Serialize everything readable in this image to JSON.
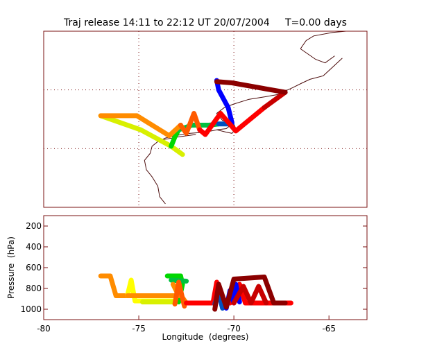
{
  "title": "Traj release 14:11 to 22:12 UT 20/07/2004     T=0.00 days",
  "colors": {
    "frame": "#7a1010",
    "coast": "#4a0a0a",
    "grid": "#7a1010",
    "palette": [
      "#ffff00",
      "#d8f000",
      "#00d800",
      "#00c040",
      "#0050c0",
      "#0000ff",
      "#ff8c00",
      "#ff5a00",
      "#ff0000",
      "#c80000",
      "#8b0000"
    ]
  },
  "chart_data": [
    {
      "type": "line",
      "name": "map",
      "note_grid": true,
      "xlim": [
        -80,
        -63
      ],
      "ylim": [
        35,
        50
      ],
      "gridlines_x": [
        -75,
        -70
      ],
      "gridlines_y": [
        40,
        45
      ],
      "series": [
        {
          "color_index": 1,
          "points": [
            [
              -77,
              42.8
            ],
            [
              -74.9,
              41.6
            ],
            [
              -73.3,
              40.2
            ],
            [
              -72.7,
              39.5
            ]
          ]
        },
        {
          "color_index": 2,
          "points": [
            [
              -73.3,
              40.2
            ],
            [
              -73.1,
              41.0
            ],
            [
              -72.9,
              41.6
            ]
          ]
        },
        {
          "color_index": 3,
          "points": [
            [
              -72.9,
              41.6
            ],
            [
              -72.2,
              42.0
            ],
            [
              -71.3,
              42.0
            ],
            [
              -70.8,
              42.1
            ]
          ]
        },
        {
          "color_index": 4,
          "points": [
            [
              -70.8,
              42.1
            ],
            [
              -70.1,
              42.1
            ]
          ]
        },
        {
          "color_index": 5,
          "points": [
            [
              -70.1,
              42.2
            ],
            [
              -70.3,
              43.5
            ],
            [
              -70.8,
              45.0
            ],
            [
              -70.9,
              45.8
            ]
          ]
        },
        {
          "color_index": 6,
          "points": [
            [
              -77,
              42.8
            ],
            [
              -75.1,
              42.8
            ],
            [
              -73.4,
              41.1
            ],
            [
              -72.8,
              42.0
            ]
          ]
        },
        {
          "color_index": 7,
          "points": [
            [
              -72.8,
              42.0
            ],
            [
              -72.5,
              41.3
            ],
            [
              -72.1,
              43.0
            ],
            [
              -71.8,
              41.6
            ]
          ]
        },
        {
          "color_index": 8,
          "points": [
            [
              -71.8,
              41.6
            ],
            [
              -71.5,
              41.2
            ],
            [
              -70.7,
              43.0
            ],
            [
              -69.9,
              41.5
            ],
            [
              -68.4,
              43.5
            ]
          ]
        },
        {
          "color_index": 9,
          "points": [
            [
              -68.4,
              43.5
            ],
            [
              -67.3,
              44.8
            ]
          ]
        },
        {
          "color_index": 10,
          "points": [
            [
              -67.3,
              44.8
            ],
            [
              -70.1,
              45.6
            ],
            [
              -70.9,
              45.7
            ]
          ]
        }
      ]
    },
    {
      "type": "line",
      "name": "pressure",
      "xlabel": "Longitude  (degrees)",
      "ylabel": "Pressure  (hPa)",
      "xlim": [
        -80,
        -63
      ],
      "ylim": [
        1100,
        100
      ],
      "xticks": [
        -80,
        -75,
        -70,
        -65
      ],
      "xtick_labels": [
        "-80",
        "-75",
        "-70",
        "-65"
      ],
      "yticks": [
        200,
        400,
        600,
        800,
        1000
      ],
      "ytick_labels": [
        "200",
        "400",
        "600",
        "800",
        "1000"
      ],
      "series": [
        {
          "color_index": 6,
          "points": [
            [
              -77,
              680
            ],
            [
              -76.5,
              680
            ],
            [
              -76.2,
              870
            ],
            [
              -75.6,
              870
            ]
          ]
        },
        {
          "color_index": 0,
          "points": [
            [
              -75.6,
              870
            ],
            [
              -75.4,
              720
            ],
            [
              -75.2,
              920
            ],
            [
              -73.0,
              920
            ]
          ]
        },
        {
          "color_index": 1,
          "points": [
            [
              -74.8,
              930
            ],
            [
              -73.1,
              930
            ]
          ]
        },
        {
          "color_index": 2,
          "points": [
            [
              -73.5,
              680
            ],
            [
              -72.8,
              680
            ],
            [
              -72.7,
              760
            ],
            [
              -72.9,
              930
            ]
          ]
        },
        {
          "color_index": 3,
          "points": [
            [
              -73.3,
              720
            ],
            [
              -72.5,
              730
            ]
          ]
        },
        {
          "color_index": 6,
          "points": [
            [
              -75.6,
              870
            ],
            [
              -72.9,
              870
            ],
            [
              -73.2,
              760
            ],
            [
              -72.5,
              940
            ]
          ]
        },
        {
          "color_index": 7,
          "points": [
            [
              -73.1,
              950
            ],
            [
              -72.9,
              740
            ],
            [
              -72.6,
              970
            ]
          ]
        },
        {
          "color_index": 8,
          "points": [
            [
              -72.5,
              940
            ],
            [
              -71.1,
              940
            ],
            [
              -70.9,
              740
            ],
            [
              -70.6,
              940
            ],
            [
              -70.2,
              940
            ],
            [
              -69.7,
              760
            ],
            [
              -69.4,
              940
            ],
            [
              -68.3,
              940
            ],
            [
              -67.0,
              940
            ]
          ]
        },
        {
          "color_index": 4,
          "points": [
            [
              -71.0,
              950
            ],
            [
              -70.8,
              840
            ],
            [
              -70.6,
              990
            ]
          ]
        },
        {
          "color_index": 5,
          "points": [
            [
              -70.4,
              990
            ],
            [
              -70.2,
              820
            ],
            [
              -70.0,
              940
            ],
            [
              -69.9,
              760
            ],
            [
              -69.7,
              930
            ]
          ]
        },
        {
          "color_index": 9,
          "points": [
            [
              -70.0,
              940
            ],
            [
              -69.5,
              780
            ],
            [
              -69.1,
              940
            ],
            [
              -68.7,
              780
            ],
            [
              -68.3,
              940
            ]
          ]
        },
        {
          "color_index": 10,
          "points": [
            [
              -71.0,
              1000
            ],
            [
              -70.8,
              760
            ],
            [
              -70.4,
              980
            ],
            [
              -70.0,
              710
            ],
            [
              -68.4,
              690
            ],
            [
              -67.9,
              940
            ],
            [
              -67.3,
              940
            ]
          ]
        }
      ]
    }
  ],
  "coastlines": [
    [
      [
        -66.5,
        48.5
      ],
      [
        -66.2,
        49.2
      ],
      [
        -65.8,
        49.6
      ],
      [
        -64.8,
        49.9
      ],
      [
        -64.1,
        50.0
      ]
    ],
    [
      [
        -66.5,
        48.5
      ],
      [
        -65.7,
        47.6
      ],
      [
        -65.2,
        47.3
      ],
      [
        -64.7,
        47.9
      ]
    ],
    [
      [
        -73.6,
        35.3
      ],
      [
        -73.9,
        35.9
      ],
      [
        -74.0,
        36.8
      ],
      [
        -74.3,
        37.6
      ],
      [
        -74.6,
        38.2
      ],
      [
        -74.7,
        39.0
      ],
      [
        -74.4,
        39.6
      ],
      [
        -74.3,
        40.2
      ],
      [
        -74.0,
        40.6
      ],
      [
        -73.6,
        40.9
      ],
      [
        -73.1,
        41.1
      ],
      [
        -72.3,
        41.3
      ],
      [
        -71.5,
        41.4
      ],
      [
        -70.9,
        41.6
      ],
      [
        -70.4,
        41.7
      ],
      [
        -70.1,
        42.1
      ],
      [
        -70.6,
        42.4
      ],
      [
        -70.9,
        43.0
      ],
      [
        -70.5,
        43.5
      ],
      [
        -70.0,
        43.8
      ],
      [
        -69.2,
        44.2
      ],
      [
        -68.4,
        44.4
      ],
      [
        -67.7,
        44.6
      ],
      [
        -66.9,
        45.2
      ],
      [
        -66.4,
        45.6
      ],
      [
        -66.0,
        45.9
      ],
      [
        -65.3,
        46.2
      ],
      [
        -64.7,
        47.1
      ],
      [
        -64.3,
        47.7
      ]
    ],
    [
      [
        -72.0,
        41.2
      ],
      [
        -72.9,
        41.0
      ],
      [
        -73.6,
        40.8
      ],
      [
        -74.0,
        40.6
      ]
    ],
    [
      [
        -70.9,
        41.6
      ],
      [
        -70.4,
        41.4
      ],
      [
        -70.1,
        41.3
      ],
      [
        -69.9,
        41.7
      ],
      [
        -70.0,
        42.1
      ]
    ]
  ]
}
